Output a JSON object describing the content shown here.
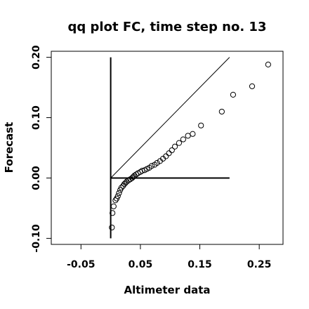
{
  "chart_data": {
    "type": "scatter",
    "title": "qq plot FC, time step no. 13",
    "xlabel": "Altimeter data",
    "ylabel": "Forecast",
    "xlim": [
      -0.1,
      0.29
    ],
    "ylim": [
      -0.11,
      0.21
    ],
    "x_ticks": [
      {
        "value": -0.05,
        "label": "-0.05"
      },
      {
        "value": 0.05,
        "label": "0.05"
      },
      {
        "value": 0.15,
        "label": "0.15"
      },
      {
        "value": 0.25,
        "label": "0.25"
      }
    ],
    "y_ticks": [
      {
        "value": -0.1,
        "label": "-0.10"
      },
      {
        "value": 0.0,
        "label": "0.00"
      },
      {
        "value": 0.1,
        "label": "0.10"
      },
      {
        "value": 0.2,
        "label": "0.20"
      }
    ],
    "reference_lines": [
      {
        "kind": "diagonal",
        "x": [
          0.0,
          0.2
        ],
        "y": [
          0.0,
          0.2
        ]
      },
      {
        "kind": "horizontal",
        "x": [
          0.0,
          0.2
        ],
        "y": [
          0.0,
          0.0
        ]
      },
      {
        "kind": "vertical",
        "x": [
          0.0,
          0.0
        ],
        "y": [
          -0.1,
          0.2
        ]
      }
    ],
    "grid": false,
    "points": [
      [
        0.002,
        -0.082
      ],
      [
        0.003,
        -0.058
      ],
      [
        0.005,
        -0.047
      ],
      [
        0.008,
        -0.037
      ],
      [
        0.01,
        -0.034
      ],
      [
        0.012,
        -0.03
      ],
      [
        0.014,
        -0.025
      ],
      [
        0.016,
        -0.02
      ],
      [
        0.018,
        -0.016
      ],
      [
        0.021,
        -0.013
      ],
      [
        0.023,
        -0.01
      ],
      [
        0.025,
        -0.008
      ],
      [
        0.027,
        -0.006
      ],
      [
        0.03,
        -0.004
      ],
      [
        0.033,
        -0.002
      ],
      [
        0.036,
        0.0
      ],
      [
        0.038,
        0.002
      ],
      [
        0.04,
        0.004
      ],
      [
        0.043,
        0.006
      ],
      [
        0.046,
        0.008
      ],
      [
        0.05,
        0.01
      ],
      [
        0.053,
        0.012
      ],
      [
        0.057,
        0.013
      ],
      [
        0.061,
        0.015
      ],
      [
        0.065,
        0.017
      ],
      [
        0.069,
        0.02
      ],
      [
        0.074,
        0.022
      ],
      [
        0.078,
        0.025
      ],
      [
        0.083,
        0.028
      ],
      [
        0.088,
        0.032
      ],
      [
        0.093,
        0.036
      ],
      [
        0.098,
        0.041
      ],
      [
        0.103,
        0.046
      ],
      [
        0.108,
        0.052
      ],
      [
        0.115,
        0.058
      ],
      [
        0.122,
        0.064
      ],
      [
        0.13,
        0.07
      ],
      [
        0.138,
        0.073
      ],
      [
        0.152,
        0.087
      ],
      [
        0.187,
        0.11
      ],
      [
        0.206,
        0.138
      ],
      [
        0.238,
        0.152
      ],
      [
        0.265,
        0.188
      ]
    ]
  }
}
